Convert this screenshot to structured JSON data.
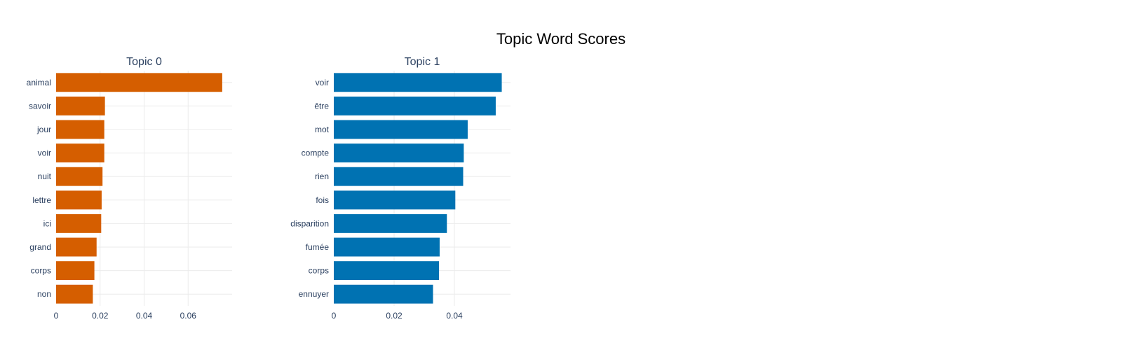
{
  "title": "Topic Word Scores",
  "chart_data": [
    {
      "type": "bar",
      "orientation": "horizontal",
      "title": "Topic 0",
      "color": "#D55E00",
      "categories": [
        "animal",
        "savoir",
        "jour",
        "voir",
        "nuit",
        "lettre",
        "ici",
        "grand",
        "corps",
        "non"
      ],
      "values": [
        0.0755,
        0.0222,
        0.0219,
        0.0219,
        0.0211,
        0.0207,
        0.0205,
        0.0184,
        0.0174,
        0.0167
      ],
      "xlim": [
        0,
        0.08
      ],
      "xticks": [
        0,
        0.02,
        0.04,
        0.06
      ],
      "xtick_labels": [
        "0",
        "0.02",
        "0.04",
        "0.06"
      ],
      "grid": true
    },
    {
      "type": "bar",
      "orientation": "horizontal",
      "title": "Topic 1",
      "color": "#0072B2",
      "categories": [
        "voir",
        "être",
        "mot",
        "compte",
        "rien",
        "fois",
        "disparition",
        "fumée",
        "corps",
        "ennuyer"
      ],
      "values": [
        0.0557,
        0.0537,
        0.0444,
        0.0431,
        0.0429,
        0.0403,
        0.0375,
        0.0351,
        0.0349,
        0.0329
      ],
      "xlim": [
        0,
        0.0586
      ],
      "xticks": [
        0,
        0.02,
        0.04
      ],
      "xtick_labels": [
        "0",
        "0.02",
        "0.04"
      ],
      "grid": true
    }
  ]
}
